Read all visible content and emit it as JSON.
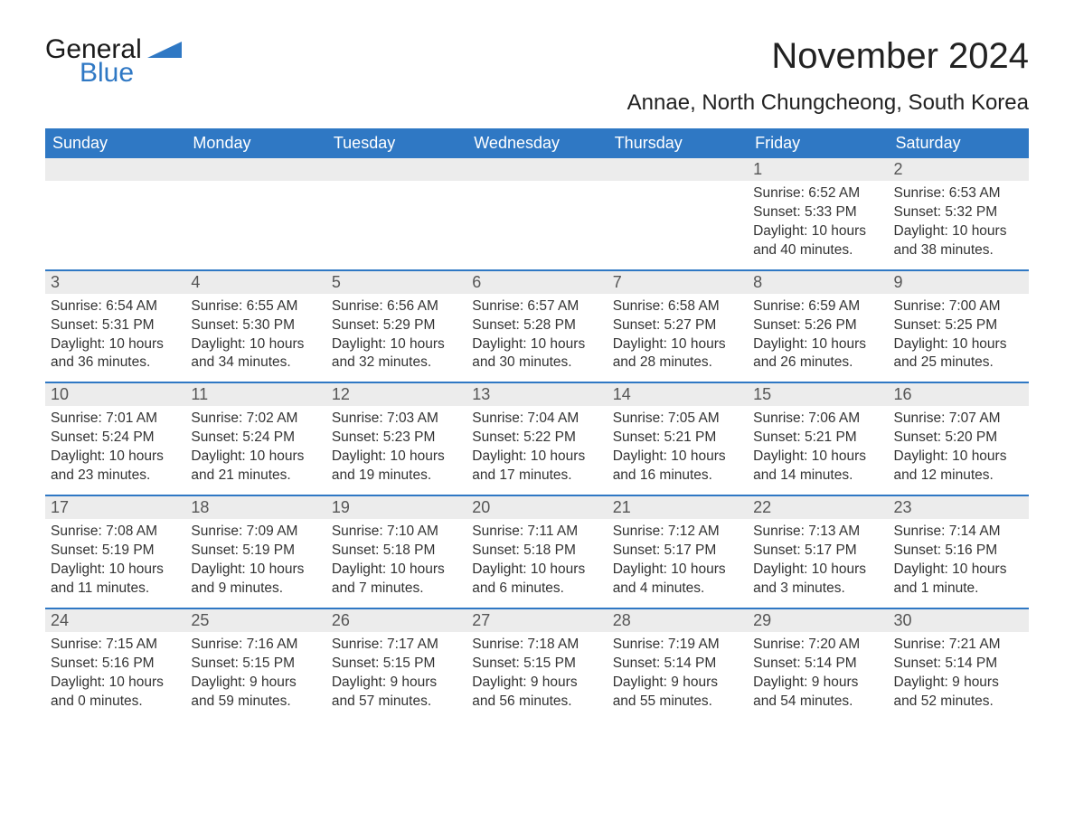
{
  "logo": {
    "general": "General",
    "blue": "Blue"
  },
  "title": "November 2024",
  "location": "Annae, North Chungcheong, South Korea",
  "colors": {
    "header_bg": "#2f78c4",
    "header_text": "#ffffff",
    "row_divider": "#2f78c4",
    "daynum_bg": "#ececec",
    "daynum_text": "#555555",
    "body_text": "#333333",
    "page_bg": "#ffffff",
    "logo_blue": "#2f78c4"
  },
  "typography": {
    "title_fontsize": 40,
    "location_fontsize": 24,
    "header_fontsize": 18,
    "daynum_fontsize": 18,
    "body_fontsize": 15.5,
    "font_family": "Arial"
  },
  "layout": {
    "columns": 7,
    "rows": 5,
    "first_day_column_index": 5
  },
  "day_headers": [
    "Sunday",
    "Monday",
    "Tuesday",
    "Wednesday",
    "Thursday",
    "Friday",
    "Saturday"
  ],
  "weeks": [
    [
      {
        "empty": true
      },
      {
        "empty": true
      },
      {
        "empty": true
      },
      {
        "empty": true
      },
      {
        "empty": true
      },
      {
        "num": "1",
        "sunrise": "Sunrise: 6:52 AM",
        "sunset": "Sunset: 5:33 PM",
        "daylight": "Daylight: 10 hours and 40 minutes."
      },
      {
        "num": "2",
        "sunrise": "Sunrise: 6:53 AM",
        "sunset": "Sunset: 5:32 PM",
        "daylight": "Daylight: 10 hours and 38 minutes."
      }
    ],
    [
      {
        "num": "3",
        "sunrise": "Sunrise: 6:54 AM",
        "sunset": "Sunset: 5:31 PM",
        "daylight": "Daylight: 10 hours and 36 minutes."
      },
      {
        "num": "4",
        "sunrise": "Sunrise: 6:55 AM",
        "sunset": "Sunset: 5:30 PM",
        "daylight": "Daylight: 10 hours and 34 minutes."
      },
      {
        "num": "5",
        "sunrise": "Sunrise: 6:56 AM",
        "sunset": "Sunset: 5:29 PM",
        "daylight": "Daylight: 10 hours and 32 minutes."
      },
      {
        "num": "6",
        "sunrise": "Sunrise: 6:57 AM",
        "sunset": "Sunset: 5:28 PM",
        "daylight": "Daylight: 10 hours and 30 minutes."
      },
      {
        "num": "7",
        "sunrise": "Sunrise: 6:58 AM",
        "sunset": "Sunset: 5:27 PM",
        "daylight": "Daylight: 10 hours and 28 minutes."
      },
      {
        "num": "8",
        "sunrise": "Sunrise: 6:59 AM",
        "sunset": "Sunset: 5:26 PM",
        "daylight": "Daylight: 10 hours and 26 minutes."
      },
      {
        "num": "9",
        "sunrise": "Sunrise: 7:00 AM",
        "sunset": "Sunset: 5:25 PM",
        "daylight": "Daylight: 10 hours and 25 minutes."
      }
    ],
    [
      {
        "num": "10",
        "sunrise": "Sunrise: 7:01 AM",
        "sunset": "Sunset: 5:24 PM",
        "daylight": "Daylight: 10 hours and 23 minutes."
      },
      {
        "num": "11",
        "sunrise": "Sunrise: 7:02 AM",
        "sunset": "Sunset: 5:24 PM",
        "daylight": "Daylight: 10 hours and 21 minutes."
      },
      {
        "num": "12",
        "sunrise": "Sunrise: 7:03 AM",
        "sunset": "Sunset: 5:23 PM",
        "daylight": "Daylight: 10 hours and 19 minutes."
      },
      {
        "num": "13",
        "sunrise": "Sunrise: 7:04 AM",
        "sunset": "Sunset: 5:22 PM",
        "daylight": "Daylight: 10 hours and 17 minutes."
      },
      {
        "num": "14",
        "sunrise": "Sunrise: 7:05 AM",
        "sunset": "Sunset: 5:21 PM",
        "daylight": "Daylight: 10 hours and 16 minutes."
      },
      {
        "num": "15",
        "sunrise": "Sunrise: 7:06 AM",
        "sunset": "Sunset: 5:21 PM",
        "daylight": "Daylight: 10 hours and 14 minutes."
      },
      {
        "num": "16",
        "sunrise": "Sunrise: 7:07 AM",
        "sunset": "Sunset: 5:20 PM",
        "daylight": "Daylight: 10 hours and 12 minutes."
      }
    ],
    [
      {
        "num": "17",
        "sunrise": "Sunrise: 7:08 AM",
        "sunset": "Sunset: 5:19 PM",
        "daylight": "Daylight: 10 hours and 11 minutes."
      },
      {
        "num": "18",
        "sunrise": "Sunrise: 7:09 AM",
        "sunset": "Sunset: 5:19 PM",
        "daylight": "Daylight: 10 hours and 9 minutes."
      },
      {
        "num": "19",
        "sunrise": "Sunrise: 7:10 AM",
        "sunset": "Sunset: 5:18 PM",
        "daylight": "Daylight: 10 hours and 7 minutes."
      },
      {
        "num": "20",
        "sunrise": "Sunrise: 7:11 AM",
        "sunset": "Sunset: 5:18 PM",
        "daylight": "Daylight: 10 hours and 6 minutes."
      },
      {
        "num": "21",
        "sunrise": "Sunrise: 7:12 AM",
        "sunset": "Sunset: 5:17 PM",
        "daylight": "Daylight: 10 hours and 4 minutes."
      },
      {
        "num": "22",
        "sunrise": "Sunrise: 7:13 AM",
        "sunset": "Sunset: 5:17 PM",
        "daylight": "Daylight: 10 hours and 3 minutes."
      },
      {
        "num": "23",
        "sunrise": "Sunrise: 7:14 AM",
        "sunset": "Sunset: 5:16 PM",
        "daylight": "Daylight: 10 hours and 1 minute."
      }
    ],
    [
      {
        "num": "24",
        "sunrise": "Sunrise: 7:15 AM",
        "sunset": "Sunset: 5:16 PM",
        "daylight": "Daylight: 10 hours and 0 minutes."
      },
      {
        "num": "25",
        "sunrise": "Sunrise: 7:16 AM",
        "sunset": "Sunset: 5:15 PM",
        "daylight": "Daylight: 9 hours and 59 minutes."
      },
      {
        "num": "26",
        "sunrise": "Sunrise: 7:17 AM",
        "sunset": "Sunset: 5:15 PM",
        "daylight": "Daylight: 9 hours and 57 minutes."
      },
      {
        "num": "27",
        "sunrise": "Sunrise: 7:18 AM",
        "sunset": "Sunset: 5:15 PM",
        "daylight": "Daylight: 9 hours and 56 minutes."
      },
      {
        "num": "28",
        "sunrise": "Sunrise: 7:19 AM",
        "sunset": "Sunset: 5:14 PM",
        "daylight": "Daylight: 9 hours and 55 minutes."
      },
      {
        "num": "29",
        "sunrise": "Sunrise: 7:20 AM",
        "sunset": "Sunset: 5:14 PM",
        "daylight": "Daylight: 9 hours and 54 minutes."
      },
      {
        "num": "30",
        "sunrise": "Sunrise: 7:21 AM",
        "sunset": "Sunset: 5:14 PM",
        "daylight": "Daylight: 9 hours and 52 minutes."
      }
    ]
  ]
}
